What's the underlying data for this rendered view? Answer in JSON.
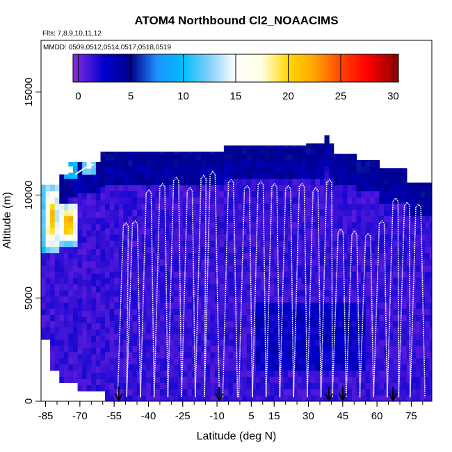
{
  "chart_data": {
    "type": "heatmap",
    "title": "ATOM4 Northbound Cl2_NOAACIMS",
    "flights_label": "Flts: 7,8,9,10,11,12",
    "dates_label": "MMDD: 0509,0512,0514,0517,0518,0519",
    "xlabel": "Latitude (deg N)",
    "ylabel": "Altitude (m)",
    "xlim": [
      -87,
      84
    ],
    "ylim": [
      0,
      17500
    ],
    "x_ticks": [
      -85,
      -70,
      -55,
      -40,
      -25,
      -10,
      5,
      15,
      30,
      45,
      60,
      75
    ],
    "x_tick_labels": [
      "-85",
      "-70",
      "-55",
      "-40",
      "-25",
      "-10",
      "5",
      "15",
      "30",
      "45",
      "60",
      "75"
    ],
    "x_minor_step": 5,
    "y_ticks": [
      0,
      5000,
      10000,
      15000
    ],
    "y_tick_labels": [
      "0",
      "5000",
      "10000",
      "15000"
    ],
    "colorbar": {
      "min": -0.5,
      "max": 30.5,
      "ticks": [
        0,
        5,
        10,
        15,
        20,
        25,
        30
      ],
      "tick_labels": [
        "0",
        "5",
        "10",
        "15",
        "20",
        "25",
        "30"
      ],
      "stops": [
        [
          -0.5,
          "#8a2be2"
        ],
        [
          2.5,
          "#0000cd"
        ],
        [
          5,
          "#00008b"
        ],
        [
          7.5,
          "#1e90ff"
        ],
        [
          10,
          "#00bfff"
        ],
        [
          12.5,
          "#87cefa"
        ],
        [
          15,
          "#ffffff"
        ],
        [
          17.5,
          "#ffffe0"
        ],
        [
          20,
          "#ffd700"
        ],
        [
          22.5,
          "#ffa500"
        ],
        [
          25,
          "#ff4500"
        ],
        [
          27.5,
          "#ff0000"
        ],
        [
          30.5,
          "#8b0000"
        ]
      ]
    },
    "flight_arrow_latitudes": [
      -53,
      -9,
      39,
      45,
      67
    ],
    "profile_ceilings": [
      {
        "lat": -51,
        "alt": 8500
      },
      {
        "lat": -47,
        "alt": 8600
      },
      {
        "lat": -41,
        "alt": 10100
      },
      {
        "lat": -35,
        "alt": 10400
      },
      {
        "lat": -29,
        "alt": 10700
      },
      {
        "lat": -23,
        "alt": 10200
      },
      {
        "lat": -17,
        "alt": 10800
      },
      {
        "lat": -13,
        "alt": 11000
      },
      {
        "lat": -5,
        "alt": 10600
      },
      {
        "lat": 2,
        "alt": 10300
      },
      {
        "lat": 8,
        "alt": 10500
      },
      {
        "lat": 14,
        "alt": 10400
      },
      {
        "lat": 20,
        "alt": 10300
      },
      {
        "lat": 26,
        "alt": 10400
      },
      {
        "lat": 32,
        "alt": 10200
      },
      {
        "lat": 38,
        "alt": 10600
      },
      {
        "lat": 43,
        "alt": 8200
      },
      {
        "lat": 49,
        "alt": 8100
      },
      {
        "lat": 55,
        "alt": 8000
      },
      {
        "lat": 61,
        "alt": 8600
      },
      {
        "lat": 67,
        "alt": 9700
      },
      {
        "lat": 72,
        "alt": 9500
      },
      {
        "lat": 77,
        "alt": 9400
      }
    ],
    "high_value_regions": [
      {
        "lat_range": [
          -87,
          -80
        ],
        "alt_range": [
          7000,
          10500
        ],
        "peak": 22
      },
      {
        "lat_range": [
          -80,
          -72
        ],
        "alt_range": [
          7500,
          9500
        ],
        "peak": 24
      },
      {
        "lat_range": [
          -78,
          -73
        ],
        "alt_range": [
          10800,
          11400
        ],
        "peak": 18
      },
      {
        "lat_range": [
          -70,
          -64
        ],
        "alt_range": [
          10800,
          11600
        ],
        "peak": 16
      }
    ]
  }
}
